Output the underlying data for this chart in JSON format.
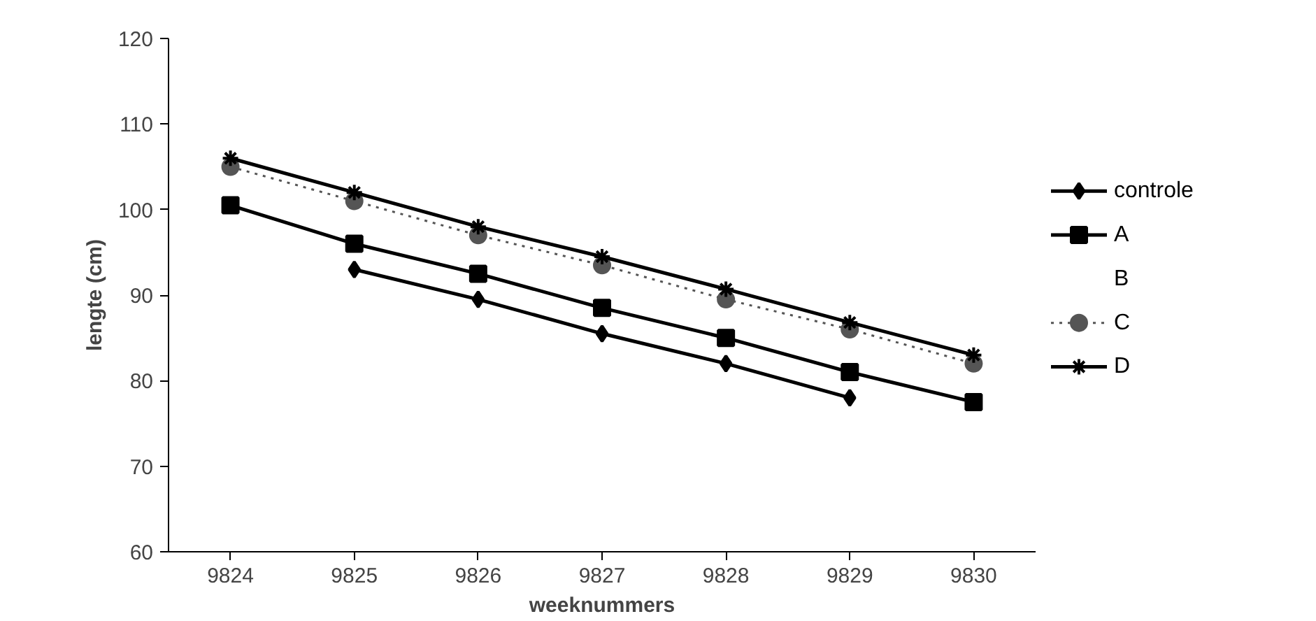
{
  "chart_data": {
    "type": "line",
    "xlabel": "weeknummers",
    "ylabel": "lengte (cm)",
    "categories": [
      "9824",
      "9825",
      "9826",
      "9827",
      "9828",
      "9829",
      "9830"
    ],
    "ylim": [
      60,
      120
    ],
    "yticks": [
      60,
      70,
      80,
      90,
      100,
      110,
      120
    ],
    "grid": false,
    "legend": "right",
    "series": [
      {
        "name": "controle",
        "color": "#000000",
        "marker": "diamond",
        "line_style": "solid",
        "values": [
          null,
          93,
          89.5,
          85.5,
          82,
          78,
          null
        ]
      },
      {
        "name": "A",
        "color": "#000000",
        "marker": "square",
        "line_style": "solid",
        "values": [
          100.5,
          96,
          92.5,
          88.5,
          85,
          81,
          77.5
        ]
      },
      {
        "name": "B",
        "marker": "none",
        "values": [
          null,
          null,
          null,
          null,
          null,
          null,
          null
        ]
      },
      {
        "name": "C",
        "color": "#555555",
        "marker": "circle",
        "line_style": "dotted",
        "values": [
          105,
          101,
          97,
          93.5,
          89.5,
          86,
          82
        ]
      },
      {
        "name": "D",
        "color": "#000000",
        "marker": "cross",
        "line_style": "solid",
        "values": [
          106,
          102,
          98,
          94.5,
          90.7,
          86.8,
          83
        ]
      }
    ]
  }
}
